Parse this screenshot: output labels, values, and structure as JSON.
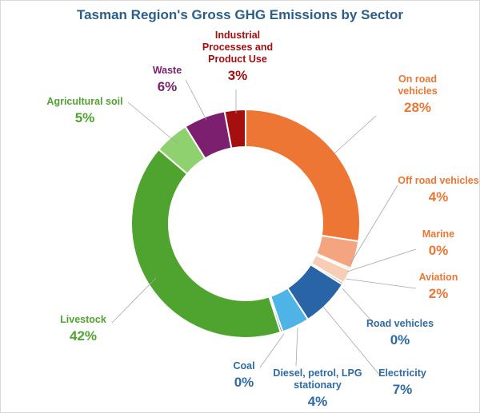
{
  "chart_data": {
    "type": "pie",
    "title": "Tasman Region's Gross GHG Emissions by Sector",
    "slices": [
      {
        "name": "On road vehicles",
        "label_lines": [
          "On road",
          "vehicles"
        ],
        "value": 28,
        "value_label": "28%",
        "color": "#ed7634"
      },
      {
        "name": "Off road vehicles",
        "label_lines": [
          "Off road vehicles"
        ],
        "value": 4,
        "value_label": "4%",
        "color": "#f4a47f"
      },
      {
        "name": "Marine",
        "label_lines": [
          "Marine"
        ],
        "value": 0.3,
        "value_label": "0%",
        "color": "#f8c6ad"
      },
      {
        "name": "Aviation",
        "label_lines": [
          "Aviation"
        ],
        "value": 2,
        "value_label": "2%",
        "color": "#f8cdb5"
      },
      {
        "name": "Road vehicles",
        "label_lines": [
          "Road vehicles"
        ],
        "value": 0.3,
        "value_label": "0%",
        "color": "#2e75b6"
      },
      {
        "name": "Electricity",
        "label_lines": [
          "Electricity"
        ],
        "value": 7,
        "value_label": "7%",
        "color": "#2864a6"
      },
      {
        "name": "Diesel, petrol, LPG stationary",
        "label_lines": [
          "Diesel, petrol, LPG",
          "stationary"
        ],
        "value": 4,
        "value_label": "4%",
        "color": "#4eb3e6"
      },
      {
        "name": "Coal",
        "label_lines": [
          "Coal"
        ],
        "value": 0.3,
        "value_label": "0%",
        "color": "#1f4e79"
      },
      {
        "name": "Livestock",
        "label_lines": [
          "Livestock"
        ],
        "value": 42,
        "value_label": "42%",
        "color": "#4fa42f"
      },
      {
        "name": "Agricultural soil",
        "label_lines": [
          "Agricultural soil"
        ],
        "value": 5,
        "value_label": "5%",
        "color": "#8fd16f"
      },
      {
        "name": "Waste",
        "label_lines": [
          "Waste"
        ],
        "value": 6,
        "value_label": "6%",
        "color": "#7b1f6e"
      },
      {
        "name": "Industrial Processes and Product Use",
        "label_lines": [
          "Industrial",
          "Processes and",
          "Product Use"
        ],
        "value": 3,
        "value_label": "3%",
        "color": "#a50f0f"
      }
    ],
    "label_colors": {
      "energy_transport": "#ed7634",
      "energy_stationary": "#2e6aa8",
      "agriculture": "#4fa42f",
      "waste": "#7b1f6e",
      "industrial": "#a50f0f"
    }
  }
}
